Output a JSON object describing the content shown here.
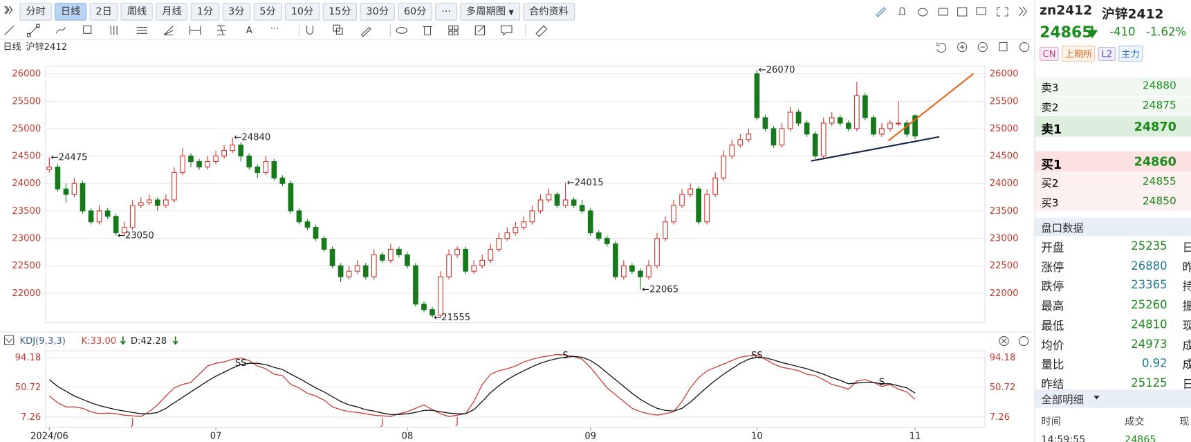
{
  "toolbar": {
    "periods": [
      "分时",
      "日线",
      "2日",
      "周线",
      "月线",
      "1分",
      "3分",
      "5分",
      "10分",
      "15分",
      "30分",
      "60分"
    ],
    "active": 1,
    "more": "···",
    "multi": "多周期图",
    "info": "合约资料"
  },
  "drawing_tools": [
    "A",
    "···"
  ],
  "chart_header": {
    "period": "日线",
    "name": "沪锌2412"
  },
  "chart_data": [
    {
      "type": "candlestick",
      "up_color": "#d0342c",
      "down_color": "#18781c",
      "grid": true,
      "categories": [
        "2024/06",
        null,
        null,
        null,
        null,
        null,
        null,
        null,
        null,
        null,
        null,
        null,
        null,
        null,
        null,
        null,
        null,
        null,
        null,
        null,
        "07",
        null,
        null,
        null,
        null,
        null,
        null,
        null,
        null,
        null,
        null,
        null,
        null,
        null,
        null,
        null,
        null,
        null,
        null,
        null,
        null,
        null,
        null,
        "08",
        null,
        null,
        null,
        null,
        null,
        null,
        null,
        null,
        null,
        null,
        null,
        null,
        null,
        null,
        null,
        null,
        null,
        null,
        null,
        null,
        null,
        "09",
        null,
        null,
        null,
        null,
        null,
        null,
        null,
        null,
        null,
        null,
        null,
        null,
        null,
        null,
        null,
        null,
        null,
        null,
        null,
        "10",
        null,
        null,
        null,
        null,
        null,
        null,
        null,
        null,
        null,
        null,
        null,
        null,
        null,
        null,
        null,
        null,
        null,
        null,
        "11"
      ],
      "values": [
        [
          24250,
          24475,
          24200,
          24300
        ],
        [
          24300,
          24350,
          23850,
          23900
        ],
        [
          23900,
          24000,
          23650,
          23800
        ],
        [
          23800,
          24100,
          23750,
          24000
        ],
        [
          24000,
          24050,
          23450,
          23500
        ],
        [
          23500,
          23550,
          23250,
          23300
        ],
        [
          23300,
          23600,
          23250,
          23500
        ],
        [
          23500,
          23550,
          23350,
          23400
        ],
        [
          23400,
          23450,
          23050,
          23100
        ],
        [
          23100,
          23300,
          23050,
          23200
        ],
        [
          23200,
          23700,
          23150,
          23600
        ],
        [
          23600,
          23750,
          23550,
          23650
        ],
        [
          23650,
          23800,
          23600,
          23700
        ],
        [
          23700,
          23750,
          23500,
          23600
        ],
        [
          23600,
          23800,
          23550,
          23700
        ],
        [
          23700,
          24300,
          23650,
          24200
        ],
        [
          24200,
          24650,
          24150,
          24500
        ],
        [
          24500,
          24550,
          24300,
          24400
        ],
        [
          24400,
          24450,
          24250,
          24300
        ],
        [
          24300,
          24500,
          24250,
          24400
        ],
        [
          24400,
          24600,
          24350,
          24500
        ],
        [
          24500,
          24700,
          24450,
          24600
        ],
        [
          24600,
          24840,
          24550,
          24700
        ],
        [
          24700,
          24750,
          24400,
          24500
        ],
        [
          24500,
          24550,
          24250,
          24300
        ],
        [
          24300,
          24350,
          24100,
          24200
        ],
        [
          24200,
          24500,
          24150,
          24400
        ],
        [
          24400,
          24450,
          24050,
          24100
        ],
        [
          24100,
          24150,
          23950,
          24000
        ],
        [
          24000,
          24050,
          23450,
          23500
        ],
        [
          23500,
          23550,
          23250,
          23300
        ],
        [
          23300,
          23350,
          23150,
          23200
        ],
        [
          23200,
          23250,
          22950,
          23000
        ],
        [
          23000,
          23050,
          22750,
          22800
        ],
        [
          22800,
          22850,
          22450,
          22500
        ],
        [
          22500,
          22550,
          22200,
          22300
        ],
        [
          22300,
          22500,
          22250,
          22400
        ],
        [
          22400,
          22600,
          22350,
          22500
        ],
        [
          22500,
          22550,
          22250,
          22300
        ],
        [
          22300,
          22800,
          22250,
          22700
        ],
        [
          22700,
          22750,
          22550,
          22600
        ],
        [
          22600,
          22900,
          22550,
          22800
        ],
        [
          22800,
          22850,
          22650,
          22700
        ],
        [
          22700,
          22750,
          22450,
          22500
        ],
        [
          22500,
          22550,
          21750,
          21800
        ],
        [
          21800,
          21850,
          21650,
          21700
        ],
        [
          21700,
          21750,
          21555,
          21600
        ],
        [
          21600,
          22400,
          21550,
          22300
        ],
        [
          22300,
          22800,
          22250,
          22700
        ],
        [
          22700,
          22850,
          22650,
          22800
        ],
        [
          22800,
          22850,
          22350,
          22400
        ],
        [
          22400,
          22600,
          22350,
          22500
        ],
        [
          22500,
          22700,
          22450,
          22600
        ],
        [
          22600,
          22900,
          22550,
          22800
        ],
        [
          22800,
          23100,
          22750,
          23000
        ],
        [
          23000,
          23200,
          22950,
          23100
        ],
        [
          23100,
          23300,
          23050,
          23200
        ],
        [
          23200,
          23400,
          23150,
          23300
        ],
        [
          23300,
          23600,
          23250,
          23500
        ],
        [
          23500,
          23800,
          23450,
          23700
        ],
        [
          23700,
          23900,
          23650,
          23800
        ],
        [
          23800,
          23850,
          23550,
          23600
        ],
        [
          23600,
          24015,
          23550,
          23700
        ],
        [
          23700,
          23750,
          23550,
          23600
        ],
        [
          23600,
          23700,
          23450,
          23500
        ],
        [
          23500,
          23550,
          23050,
          23100
        ],
        [
          23100,
          23150,
          22950,
          23000
        ],
        [
          23000,
          23050,
          22850,
          22900
        ],
        [
          22900,
          22950,
          22250,
          22300
        ],
        [
          22300,
          22600,
          22250,
          22500
        ],
        [
          22500,
          22550,
          22350,
          22400
        ],
        [
          22400,
          22450,
          22065,
          22300
        ],
        [
          22300,
          22600,
          22250,
          22500
        ],
        [
          22500,
          23100,
          22450,
          23000
        ],
        [
          23000,
          23400,
          22950,
          23300
        ],
        [
          23300,
          23700,
          23250,
          23600
        ],
        [
          23600,
          23900,
          23550,
          23800
        ],
        [
          23800,
          24000,
          23750,
          23900
        ],
        [
          23900,
          23950,
          23250,
          23300
        ],
        [
          23300,
          23900,
          23250,
          23800
        ],
        [
          23800,
          24200,
          23750,
          24100
        ],
        [
          24100,
          24600,
          24050,
          24500
        ],
        [
          24500,
          24800,
          24450,
          24700
        ],
        [
          24700,
          24900,
          24650,
          24800
        ],
        [
          24800,
          25000,
          24750,
          24900
        ],
        [
          26000,
          26070,
          25150,
          25200
        ],
        [
          25200,
          25250,
          24950,
          25000
        ],
        [
          25000,
          25050,
          24650,
          24700
        ],
        [
          24700,
          25100,
          24650,
          25000
        ],
        [
          25000,
          25400,
          24950,
          25300
        ],
        [
          25300,
          25350,
          25050,
          25100
        ],
        [
          25100,
          25150,
          24850,
          24900
        ],
        [
          24900,
          24950,
          24450,
          24500
        ],
        [
          24500,
          25200,
          24450,
          25100
        ],
        [
          25100,
          25300,
          25050,
          25200
        ],
        [
          25200,
          25250,
          25050,
          25100
        ],
        [
          25100,
          25150,
          24950,
          25000
        ],
        [
          25000,
          25850,
          24950,
          25600
        ],
        [
          25600,
          25650,
          25150,
          25200
        ],
        [
          25200,
          25250,
          24850,
          24900
        ],
        [
          24900,
          25100,
          24850,
          25000
        ],
        [
          25000,
          25150,
          24950,
          25100
        ],
        [
          25100,
          25500,
          25050,
          25100
        ],
        [
          25100,
          25150,
          24850,
          24900
        ],
        [
          25235,
          25260,
          24810,
          24865
        ]
      ],
      "ylim": [
        21460,
        26140
      ],
      "yticks": [
        22000,
        22500,
        23000,
        23500,
        24000,
        24500,
        25000,
        25500,
        26000
      ],
      "annotations": [
        {
          "index": 0,
          "value": 24475,
          "label": "←24475"
        },
        {
          "index": 8,
          "value": 23050,
          "label": "←23050"
        },
        {
          "index": 22,
          "value": 24840,
          "label": "←24840"
        },
        {
          "index": 46,
          "value": 21555,
          "label": "←21555"
        },
        {
          "index": 62,
          "value": 24015,
          "label": "←24015"
        },
        {
          "index": 71,
          "value": 22065,
          "label": "←22065"
        },
        {
          "index": 85,
          "value": 26070,
          "label": "←26070"
        }
      ],
      "trendlines": [
        {
          "color": "#e8671e",
          "points": [
            [
              100.8,
              24780
            ],
            [
              111,
              26000
            ]
          ]
        },
        {
          "color": "#1b2a4a",
          "points": [
            [
              91.5,
              24410
            ],
            [
              106.9,
              24850
            ]
          ]
        }
      ]
    },
    {
      "type": "line",
      "title": "KDJ(9,3,3)",
      "k_label": "K:33.00",
      "d_label": "D:42.28",
      "ylim": [
        -8.3,
        104.2
      ],
      "yticks": [
        7.26,
        50.72,
        94.18
      ],
      "series": [
        {
          "name": "K",
          "color": "#c8413a",
          "values": [
            38,
            28,
            22,
            22,
            20,
            15,
            12,
            13,
            12,
            10,
            9,
            8,
            15,
            25,
            38,
            50,
            55,
            58,
            70,
            82,
            86,
            88,
            92,
            94,
            90,
            82,
            78,
            70,
            68,
            55,
            50,
            42,
            38,
            32,
            22,
            18,
            15,
            14,
            12,
            10,
            9,
            8,
            12,
            15,
            20,
            25,
            18,
            12,
            8,
            10,
            12,
            30,
            55,
            70,
            75,
            78,
            82,
            88,
            92,
            95,
            97,
            99,
            98,
            96,
            92,
            80,
            65,
            50,
            40,
            30,
            20,
            15,
            12,
            10,
            12,
            15,
            30,
            50,
            65,
            75,
            80,
            85,
            90,
            95,
            97,
            98,
            92,
            85,
            80,
            78,
            75,
            70,
            68,
            62,
            55,
            52,
            48,
            60,
            62,
            58,
            52,
            55,
            48,
            44,
            33
          ]
        },
        {
          "name": "D",
          "color": "#111111",
          "values": [
            62,
            52,
            45,
            38,
            33,
            28,
            24,
            21,
            18,
            16,
            14,
            12,
            12,
            14,
            20,
            28,
            36,
            44,
            52,
            60,
            67,
            73,
            79,
            84,
            86,
            86,
            84,
            80,
            77,
            70,
            64,
            57,
            50,
            44,
            37,
            30,
            25,
            22,
            18,
            16,
            13,
            11,
            11,
            12,
            14,
            17,
            17,
            15,
            13,
            12,
            12,
            18,
            30,
            43,
            53,
            62,
            69,
            75,
            81,
            86,
            90,
            93,
            95,
            96,
            95,
            90,
            82,
            72,
            62,
            52,
            42,
            33,
            26,
            20,
            17,
            16,
            20,
            29,
            40,
            51,
            61,
            70,
            78,
            86,
            92,
            95,
            94,
            91,
            87,
            84,
            81,
            78,
            74,
            70,
            65,
            61,
            56,
            57,
            58,
            58,
            56,
            56,
            53,
            50,
            42.28
          ]
        }
      ],
      "signals": [
        {
          "index": 23,
          "label": "SS"
        },
        {
          "index": 62,
          "label": "S"
        },
        {
          "index": 85,
          "label": "SS"
        },
        {
          "index": 100,
          "label": "S"
        },
        {
          "index": 10,
          "label": "J"
        },
        {
          "index": 40,
          "label": "J"
        },
        {
          "index": 49,
          "label": "J"
        }
      ]
    }
  ],
  "quote": {
    "code": "zn2412",
    "name": "沪锌2412",
    "last": 24865,
    "change": -410,
    "change_pct": "-1.62%",
    "tags": [
      "CN",
      "上期所",
      "L2",
      "主力"
    ]
  },
  "order_book": {
    "sells": [
      {
        "label": "卖3",
        "price": 24880
      },
      {
        "label": "卖2",
        "price": 24875
      },
      {
        "label": "卖1",
        "price": 24870
      }
    ],
    "buys": [
      {
        "label": "买1",
        "price": 24860
      },
      {
        "label": "买2",
        "price": 24855
      },
      {
        "label": "买3",
        "price": 24850
      }
    ]
  },
  "stats": {
    "title": "盘口数据",
    "rows": [
      {
        "label": "开盘",
        "value": 25235,
        "next": "日"
      },
      {
        "label": "涨停",
        "value": 26880,
        "next": "昨"
      },
      {
        "label": "跌停",
        "value": 23365,
        "next": "持"
      },
      {
        "label": "最高",
        "value": 25260,
        "next": "振"
      },
      {
        "label": "最低",
        "value": 24810,
        "next": "现"
      },
      {
        "label": "均价",
        "value": 24973,
        "next": "成"
      },
      {
        "label": "量比",
        "value": 0.92,
        "next": "成"
      },
      {
        "label": "昨结",
        "value": 25125,
        "next": "日"
      }
    ]
  },
  "detail": {
    "title": "全部明细",
    "columns": [
      "时间",
      "成交",
      "现"
    ],
    "row": [
      "14:59:55",
      "24865"
    ]
  }
}
